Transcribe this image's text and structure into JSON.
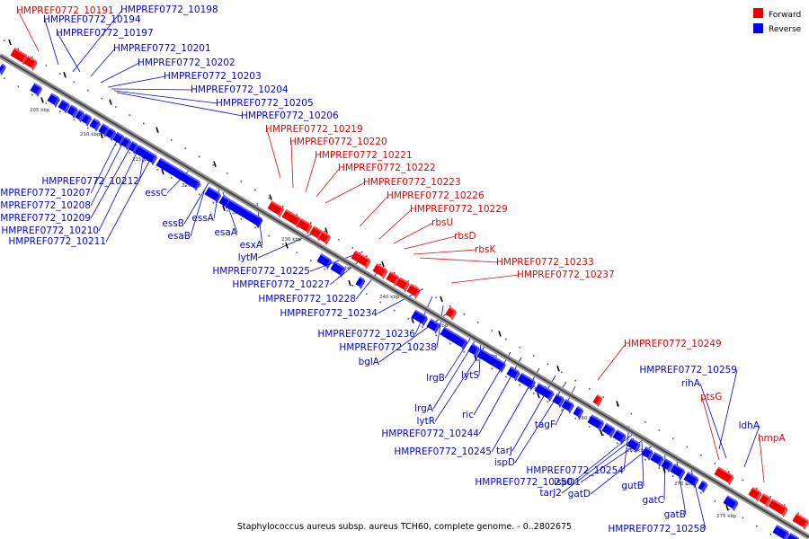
{
  "colors": {
    "forward": "#ee0000",
    "reverse": "#0000ee",
    "backbone": "#777777"
  },
  "legend": [
    {
      "label": "Forward",
      "strand": "forward"
    },
    {
      "label": "Reverse",
      "strand": "reverse"
    }
  ],
  "caption": "Staphylococcus aureus subsp. aureus TCH60, complete genome. - 0..2802675",
  "kbp_ticks": [
    "205 kbp",
    "210 kbp",
    "215 kbp",
    "220 kbp",
    "225 kbp",
    "230 kbp",
    "235 kbp",
    "240 kbp",
    "245 kbp",
    "250 kbp",
    "255 kbp",
    "260 kbp",
    "265 kbp",
    "270 kbp",
    "275 kbp"
  ],
  "forward_labels": [
    "HMPREF0772_10191",
    "HMPREF0772_10219",
    "HMPREF0772_10220",
    "HMPREF0772_10221",
    "HMPREF0772_10222",
    "HMPREF0772_10223",
    "HMPREF0772_10226",
    "HMPREF0772_10229",
    "rbsU",
    "rbsD",
    "rbsK",
    "HMPREF0772_10233",
    "HMPREF0772_10237",
    "HMPREF0772_10249",
    "ptsG",
    "hmpA"
  ],
  "reverse_labels": [
    "HMPREF0772_10198",
    "HMPREF0772_10194",
    "HMPREF0772_10197",
    "HMPREF0772_10201",
    "HMPREF0772_10202",
    "HMPREF0772_10203",
    "HMPREF0772_10204",
    "HMPREF0772_10205",
    "HMPREF0772_10206",
    "HMPREF0772_10212",
    "HMPREF0772_10207",
    "HMPREF0772_10208",
    "HMPREF0772_10209",
    "HMPREF0772_10210",
    "HMPREF0772_10211",
    "essC",
    "essB",
    "essA",
    "esaB",
    "esaA",
    "esxA",
    "lytM",
    "HMPREF0772_10225",
    "HMPREF0772_10227",
    "HMPREF0772_10228",
    "HMPREF0772_10234",
    "HMPREF0772_10236",
    "HMPREF0772_10238",
    "bglA",
    "lrgB",
    "lytS",
    "lrgA",
    "lytR",
    "ric",
    "HMPREF0772_10244",
    "HMPREF0772_10245",
    "tarJ",
    "ispD",
    "tagF",
    "HMPREF0772_10254",
    "HMPREF0772_10250",
    "ispD1",
    "tarJ2",
    "gatD",
    "gutB",
    "gatC",
    "gatB",
    "HMPREF0772_10258",
    "HMPREF0772_10259",
    "rihA",
    "ldhA"
  ]
}
